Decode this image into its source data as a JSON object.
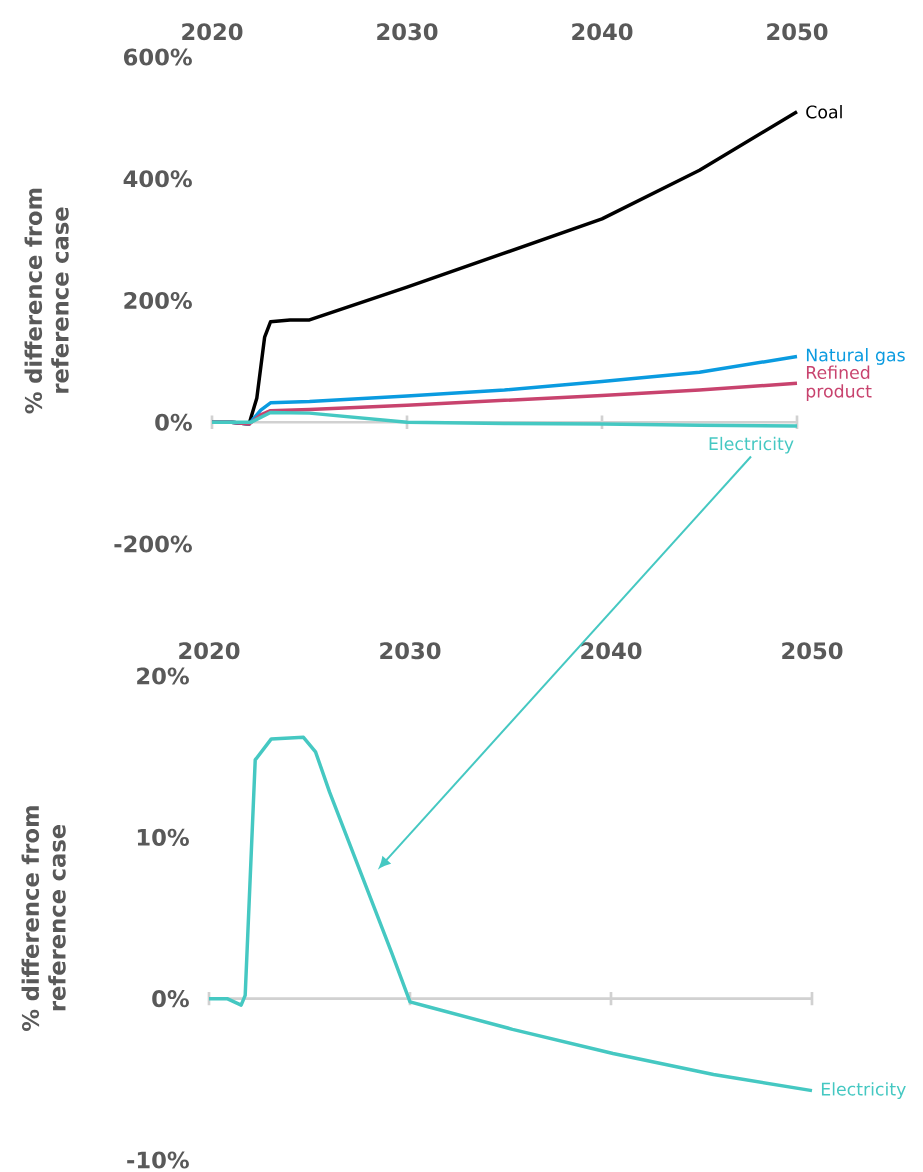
{
  "chart_data": [
    {
      "type": "line",
      "xlim": [
        2020,
        2050
      ],
      "xticks": [
        2020,
        2030,
        2040,
        2050
      ],
      "ylim": [
        -200,
        600
      ],
      "yticks": [
        {
          "value": 600,
          "label": "600%"
        },
        {
          "value": 400,
          "label": "400%"
        },
        {
          "value": 200,
          "label": "200%"
        },
        {
          "value": 0,
          "label": "0%"
        },
        {
          "value": -200,
          "label": "-200%"
        }
      ],
      "ylabel": "% difference from reference case",
      "series": [
        {
          "name": "Coal",
          "color": "#000000",
          "x": [
            2020,
            2021,
            2021.9,
            2022.3,
            2022.7,
            2023,
            2024,
            2025,
            2030,
            2035,
            2040,
            2045,
            2050
          ],
          "values": [
            0,
            0,
            -3,
            40,
            140,
            165,
            168,
            168,
            222,
            278,
            334,
            414,
            510
          ]
        },
        {
          "name": "Natural gas",
          "color": "#0a9be0",
          "x": [
            2020,
            2021,
            2021.9,
            2022.5,
            2023,
            2025,
            2030,
            2035,
            2040,
            2045,
            2050
          ],
          "values": [
            0,
            0,
            -3,
            20,
            32,
            34,
            43,
            53,
            67,
            82,
            108
          ]
        },
        {
          "name": "Refined product",
          "color": "#c8436e",
          "x": [
            2020,
            2021,
            2021.9,
            2022.5,
            2023,
            2025,
            2030,
            2035,
            2040,
            2045,
            2050
          ],
          "values": [
            0,
            0,
            -3,
            12,
            19,
            21,
            28,
            36,
            44,
            53,
            64
          ]
        },
        {
          "name": "Electricity",
          "color": "#45c8c2",
          "x": [
            2020,
            2021,
            2022,
            2023,
            2025,
            2030,
            2035,
            2040,
            2045,
            2050
          ],
          "values": [
            0,
            0,
            0,
            16,
            15,
            0,
            -2,
            -3,
            -5,
            -6
          ]
        }
      ]
    },
    {
      "type": "line",
      "xlim": [
        2020,
        2050
      ],
      "xticks": [
        2020,
        2030,
        2040,
        2050
      ],
      "ylim": [
        -10,
        20
      ],
      "yticks": [
        {
          "value": 20,
          "label": "20%"
        },
        {
          "value": 10,
          "label": "10%"
        },
        {
          "value": 0,
          "label": "0%"
        },
        {
          "value": -10,
          "label": "-10%"
        }
      ],
      "ylabel": "% difference from reference case",
      "series": [
        {
          "name": "Electricity",
          "color": "#45c8c2",
          "x": [
            2020,
            2020.9,
            2021.6,
            2021.8,
            2022.3,
            2023.1,
            2024.7,
            2025.3,
            2026,
            2029.1,
            2030,
            2030.9,
            2035.1,
            2040.1,
            2045.1,
            2050
          ],
          "values": [
            0,
            0,
            -0.4,
            0.2,
            14.8,
            16.1,
            16.2,
            15.3,
            12.8,
            2.8,
            -0.2,
            -0.5,
            -1.9,
            -3.4,
            -4.7,
            -5.7
          ]
        }
      ]
    }
  ]
}
